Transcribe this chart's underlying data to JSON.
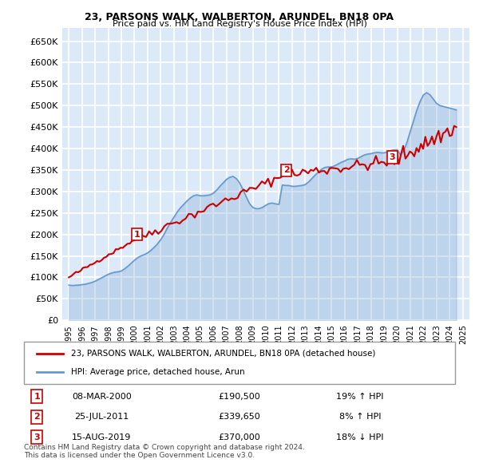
{
  "title": "23, PARSONS WALK, WALBERTON, ARUNDEL, BN18 0PA",
  "subtitle": "Price paid vs. HM Land Registry's House Price Index (HPI)",
  "ylabel_ticks": [
    "£0",
    "£50K",
    "£100K",
    "£150K",
    "£200K",
    "£250K",
    "£300K",
    "£350K",
    "£400K",
    "£450K",
    "£500K",
    "£550K",
    "£600K",
    "£650K"
  ],
  "ytick_values": [
    0,
    50000,
    100000,
    150000,
    200000,
    250000,
    300000,
    350000,
    400000,
    450000,
    500000,
    550000,
    600000,
    650000
  ],
  "xlim_start": 1994.5,
  "xlim_end": 2025.5,
  "ylim_min": 0,
  "ylim_max": 680000,
  "background_color": "#dce9f8",
  "plot_bg_color": "#dce9f8",
  "grid_color": "#ffffff",
  "sale_color": "#cc0000",
  "hpi_color": "#6699cc",
  "sale_points": [
    {
      "year": 2000.18,
      "price": 190500,
      "label": "1"
    },
    {
      "year": 2011.56,
      "price": 339650,
      "label": "2"
    },
    {
      "year": 2019.62,
      "price": 370000,
      "label": "3"
    }
  ],
  "legend_sale_label": "23, PARSONS WALK, WALBERTON, ARUNDEL, BN18 0PA (detached house)",
  "legend_hpi_label": "HPI: Average price, detached house, Arun",
  "table_rows": [
    {
      "num": "1",
      "date": "08-MAR-2000",
      "price": "£190,500",
      "change": "19% ↑ HPI"
    },
    {
      "num": "2",
      "date": "25-JUL-2011",
      "price": "£339,650",
      "change": "8% ↑ HPI"
    },
    {
      "num": "3",
      "date": "15-AUG-2019",
      "price": "£370,000",
      "change": "18% ↓ HPI"
    }
  ],
  "footer": "Contains HM Land Registry data © Crown copyright and database right 2024.\nThis data is licensed under the Open Government Licence v3.0.",
  "hpi_data": {
    "years": [
      1995.0,
      1995.25,
      1995.5,
      1995.75,
      1996.0,
      1996.25,
      1996.5,
      1996.75,
      1997.0,
      1997.25,
      1997.5,
      1997.75,
      1998.0,
      1998.25,
      1998.5,
      1998.75,
      1999.0,
      1999.25,
      1999.5,
      1999.75,
      2000.0,
      2000.25,
      2000.5,
      2000.75,
      2001.0,
      2001.25,
      2001.5,
      2001.75,
      2002.0,
      2002.25,
      2002.5,
      2002.75,
      2003.0,
      2003.25,
      2003.5,
      2003.75,
      2004.0,
      2004.25,
      2004.5,
      2004.75,
      2005.0,
      2005.25,
      2005.5,
      2005.75,
      2006.0,
      2006.25,
      2006.5,
      2006.75,
      2007.0,
      2007.25,
      2007.5,
      2007.75,
      2008.0,
      2008.25,
      2008.5,
      2008.75,
      2009.0,
      2009.25,
      2009.5,
      2009.75,
      2010.0,
      2010.25,
      2010.5,
      2010.75,
      2011.0,
      2011.25,
      2011.5,
      2011.75,
      2012.0,
      2012.25,
      2012.5,
      2012.75,
      2013.0,
      2013.25,
      2013.5,
      2013.75,
      2014.0,
      2014.25,
      2014.5,
      2014.75,
      2015.0,
      2015.25,
      2015.5,
      2015.75,
      2016.0,
      2016.25,
      2016.5,
      2016.75,
      2017.0,
      2017.25,
      2017.5,
      2017.75,
      2018.0,
      2018.25,
      2018.5,
      2018.75,
      2019.0,
      2019.25,
      2019.5,
      2019.75,
      2020.0,
      2020.25,
      2020.5,
      2020.75,
      2021.0,
      2021.25,
      2021.5,
      2021.75,
      2022.0,
      2022.25,
      2022.5,
      2022.75,
      2023.0,
      2023.25,
      2023.5,
      2023.75,
      2024.0,
      2024.25,
      2024.5
    ],
    "values": [
      82000,
      81000,
      81500,
      82000,
      83000,
      84000,
      86000,
      88000,
      91000,
      95000,
      99000,
      103000,
      107000,
      110000,
      112000,
      113000,
      115000,
      120000,
      126000,
      133000,
      140000,
      146000,
      150000,
      153000,
      157000,
      163000,
      170000,
      178000,
      188000,
      200000,
      215000,
      228000,
      240000,
      252000,
      262000,
      270000,
      278000,
      285000,
      290000,
      292000,
      290000,
      290000,
      291000,
      292000,
      296000,
      303000,
      312000,
      320000,
      328000,
      333000,
      335000,
      330000,
      320000,
      305000,
      288000,
      272000,
      263000,
      260000,
      260000,
      263000,
      268000,
      272000,
      273000,
      271000,
      270000,
      315000,
      314000,
      314000,
      312000,
      312000,
      313000,
      314000,
      316000,
      322000,
      330000,
      338000,
      345000,
      352000,
      356000,
      357000,
      357000,
      360000,
      364000,
      368000,
      371000,
      375000,
      376000,
      375000,
      377000,
      381000,
      385000,
      387000,
      388000,
      390000,
      391000,
      390000,
      390000,
      392000,
      395000,
      397000,
      397000,
      385000,
      395000,
      415000,
      440000,
      465000,
      490000,
      510000,
      525000,
      530000,
      525000,
      515000,
      505000,
      500000,
      498000,
      496000,
      494000,
      492000,
      490000
    ]
  },
  "sale_line_data": {
    "years": [
      1995.0,
      2000.18,
      2011.56,
      2019.62,
      2024.5
    ],
    "values": [
      100000,
      190500,
      339650,
      370000,
      450000
    ]
  }
}
